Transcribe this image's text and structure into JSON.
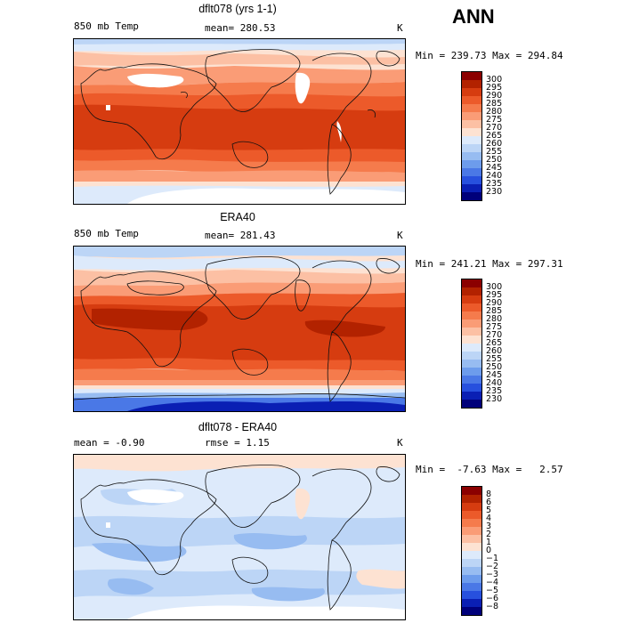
{
  "season": "ANN",
  "panels": [
    {
      "title": "dflt078 (yrs 1-1)",
      "left_label": "850 mb Temp",
      "center_label": "mean= 280.53",
      "units": "K",
      "minmax": "Min = 239.73 Max = 294.84",
      "colorbar_labels": [
        "300",
        "295",
        "290",
        "285",
        "280",
        "275",
        "270",
        "265",
        "260",
        "255",
        "250",
        "245",
        "240",
        "235",
        "230"
      ],
      "colors": [
        "#8b0000",
        "#b22200",
        "#d63c10",
        "#ec5a2a",
        "#f57b4c",
        "#fa9c76",
        "#fcc0a4",
        "#fde2d2",
        "#ddeafb",
        "#bcd5f6",
        "#97bcf1",
        "#6d9cec",
        "#4a78e6",
        "#2750de",
        "#0a1fb4",
        "#00007a"
      ]
    },
    {
      "title": "ERA40",
      "left_label": "850 mb Temp",
      "center_label": "mean= 281.43",
      "units": "K",
      "minmax": "Min = 241.21 Max = 297.31",
      "colorbar_labels": [
        "300",
        "295",
        "290",
        "285",
        "280",
        "275",
        "270",
        "265",
        "260",
        "255",
        "250",
        "245",
        "240",
        "235",
        "230"
      ],
      "colors": [
        "#8b0000",
        "#b22200",
        "#d63c10",
        "#ec5a2a",
        "#f57b4c",
        "#fa9c76",
        "#fcc0a4",
        "#fde2d2",
        "#ddeafb",
        "#bcd5f6",
        "#97bcf1",
        "#6d9cec",
        "#4a78e6",
        "#2750de",
        "#0a1fb4",
        "#00007a"
      ]
    },
    {
      "title": "dflt078 - ERA40",
      "left_label": "mean =   -0.90",
      "center_label": "rmse =    1.15",
      "units": "K",
      "minmax": "Min =  -7.63 Max =   2.57",
      "colorbar_labels": [
        "8",
        "6",
        "5",
        "4",
        "3",
        "2",
        "1",
        "0",
        "−1",
        "−2",
        "−3",
        "−4",
        "−5",
        "−6",
        "−8"
      ],
      "colors": [
        "#8b0000",
        "#b22200",
        "#d63c10",
        "#ec5a2a",
        "#f57b4c",
        "#fa9c76",
        "#fcc0a4",
        "#fde2d2",
        "#ddeafb",
        "#bcd5f6",
        "#97bcf1",
        "#6d9cec",
        "#4a78e6",
        "#2750de",
        "#0a1fb4",
        "#00007a"
      ]
    }
  ]
}
